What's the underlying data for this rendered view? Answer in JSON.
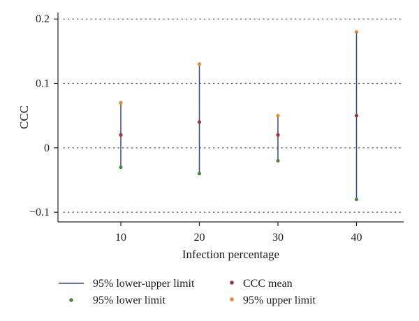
{
  "chart_data": {
    "type": "scatter",
    "title": "",
    "xlabel": "Infection percentage",
    "ylabel": "CCC",
    "x": [
      10,
      20,
      30,
      40
    ],
    "x_tick_labels": [
      "10",
      "20",
      "30",
      "40"
    ],
    "xlim": [
      2,
      46
    ],
    "ylim": [
      -0.115,
      0.21
    ],
    "y_ticks": [
      0.2,
      0.1,
      0,
      -0.1
    ],
    "y_tick_labels": [
      "0.2",
      "0.1",
      "0",
      "−0.1"
    ],
    "grid": "horizontal-dotted",
    "legend_position": "bottom",
    "series": [
      {
        "name": "95% lower-upper limit",
        "kind": "range",
        "color": "#2c4a8a"
      },
      {
        "name": "CCC mean",
        "kind": "point",
        "color": "#a2333a",
        "values": [
          0.02,
          0.04,
          0.02,
          0.05
        ]
      },
      {
        "name": "95% lower limit",
        "kind": "point",
        "color": "#4f8a3c",
        "values": [
          -0.03,
          -0.04,
          -0.02,
          -0.08
        ]
      },
      {
        "name": "95% upper limit",
        "kind": "point",
        "color": "#f0892a",
        "values": [
          0.07,
          0.13,
          0.05,
          0.18
        ]
      }
    ]
  }
}
